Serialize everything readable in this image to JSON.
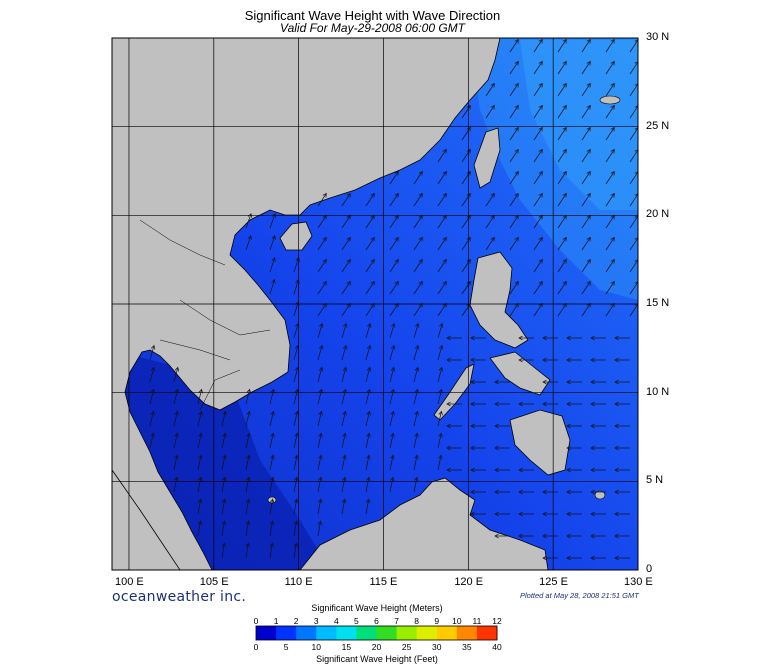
{
  "title": "Significant Wave Height with Wave Direction",
  "subtitle": "Valid For May-29-2008 06:00 GMT",
  "axes": {
    "lon_labels": [
      "100 E",
      "105 E",
      "110 E",
      "115 E",
      "120 E",
      "125 E",
      "130 E"
    ],
    "lat_labels": [
      "0",
      "5 N",
      "10 N",
      "15 N",
      "20 N",
      "25 N",
      "30 N"
    ],
    "lon_range": [
      99,
      130
    ],
    "lat_range": [
      0,
      30
    ]
  },
  "brand": "oceanweather inc.",
  "plotted": "Plotted at May 28, 2008 21:51 GMT",
  "scale": {
    "meters_label": "Significant Wave Height (Meters)",
    "feet_label": "Significant Wave Height (Feet)",
    "meters_ticks": [
      "0",
      "1",
      "2",
      "3",
      "4",
      "5",
      "6",
      "7",
      "8",
      "9",
      "10",
      "11",
      "12"
    ],
    "feet_ticks": [
      "0",
      "5",
      "10",
      "15",
      "20",
      "25",
      "30",
      "35",
      "40"
    ],
    "colors": [
      "#0000cd",
      "#0033ff",
      "#0077ff",
      "#00bbff",
      "#00e0ee",
      "#00e07a",
      "#33dd22",
      "#99ee00",
      "#ddee00",
      "#ffcc00",
      "#ff8800",
      "#ff3300"
    ]
  },
  "colors": {
    "land": "#c0c0c0",
    "sea_low": "#0a1fa8",
    "sea_mid": "#1a4ff2",
    "sea_high": "#2a8cf8"
  }
}
